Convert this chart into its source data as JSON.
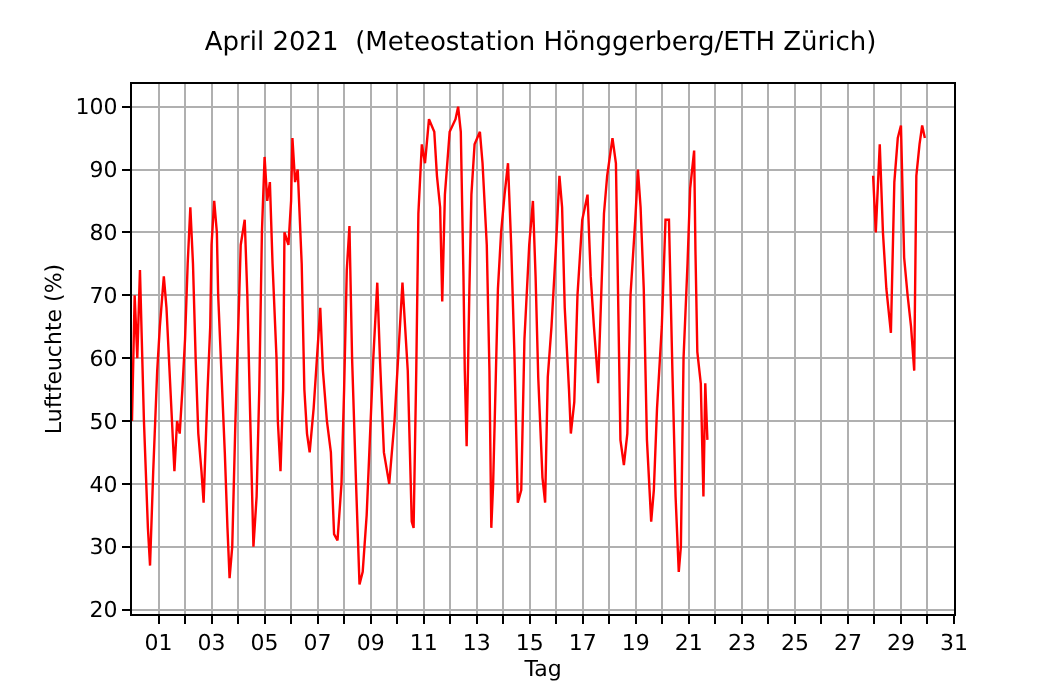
{
  "chart_data": {
    "type": "line",
    "title": "April 2021  (Meteostation Hönggerberg/ETH Zürich)",
    "xlabel": "Tag",
    "ylabel": "Luftfeuchte (%)",
    "x": [
      0.0,
      0.1,
      0.2,
      0.3,
      0.45,
      0.6,
      0.68,
      0.8,
      0.95,
      1.05,
      1.2,
      1.3,
      1.45,
      1.6,
      1.7,
      1.8,
      1.9,
      2.0,
      2.1,
      2.2,
      2.3,
      2.4,
      2.5,
      2.62,
      2.7,
      2.85,
      2.95,
      3.0,
      3.1,
      3.2,
      3.25,
      3.35,
      3.5,
      3.6,
      3.68,
      3.78,
      3.9,
      4.1,
      4.25,
      4.35,
      4.45,
      4.58,
      4.7,
      4.8,
      4.9,
      5.0,
      5.1,
      5.2,
      5.3,
      5.45,
      5.5,
      5.6,
      5.7,
      5.75,
      5.9,
      6.0,
      6.05,
      6.15,
      6.25,
      6.4,
      6.5,
      6.6,
      6.7,
      6.85,
      7.1,
      7.2,
      7.35,
      7.5,
      7.62,
      7.75,
      7.9,
      8.0,
      8.1,
      8.2,
      8.3,
      8.45,
      8.58,
      8.7,
      8.85,
      8.95,
      9.1,
      9.25,
      9.35,
      9.5,
      9.7,
      9.9,
      10.05,
      10.2,
      10.4,
      10.55,
      10.62,
      10.72,
      10.8,
      10.93,
      11.05,
      11.2,
      11.4,
      11.5,
      11.62,
      11.7,
      11.8,
      11.98,
      12.2,
      12.3,
      12.4,
      12.5,
      12.55,
      12.62,
      12.72,
      12.8,
      12.92,
      13.12,
      13.22,
      13.38,
      13.48,
      13.55,
      13.62,
      13.72,
      13.8,
      13.92,
      14.05,
      14.18,
      14.3,
      14.42,
      14.55,
      14.68,
      14.8,
      14.98,
      15.12,
      15.22,
      15.32,
      15.48,
      15.58,
      15.68,
      15.82,
      15.98,
      16.12,
      16.22,
      16.32,
      16.48,
      16.55,
      16.68,
      16.8,
      16.98,
      17.18,
      17.3,
      17.42,
      17.58,
      17.68,
      17.8,
      17.92,
      18.12,
      18.25,
      18.32,
      18.42,
      18.55,
      18.68,
      18.8,
      18.98,
      19.08,
      19.18,
      19.3,
      19.42,
      19.58,
      19.68,
      19.8,
      19.98,
      20.12,
      20.25,
      20.38,
      20.5,
      20.62,
      20.7,
      20.8,
      20.95,
      21.05,
      21.2,
      21.25,
      21.32,
      21.45,
      21.55,
      21.62,
      21.7,
      24.8,
      27.95,
      28.05,
      28.2,
      28.32,
      28.45,
      28.62,
      28.75,
      28.88,
      29.0,
      29.12,
      29.25,
      29.38,
      29.5,
      29.58,
      29.7,
      29.8,
      29.9
    ],
    "series": [
      {
        "color": "#ff0000",
        "values": [
          50,
          70,
          60,
          74,
          50,
          33,
          27,
          42,
          58,
          65,
          73,
          68,
          55,
          42,
          50,
          48,
          55,
          63,
          75,
          84,
          75,
          60,
          48,
          42,
          37,
          55,
          65,
          78,
          85,
          80,
          70,
          60,
          45,
          33,
          25,
          30,
          50,
          78,
          82,
          70,
          52,
          30,
          38,
          55,
          80,
          92,
          85,
          88,
          75,
          60,
          50,
          42,
          55,
          80,
          78,
          85,
          95,
          88,
          90,
          75,
          55,
          48,
          45,
          52,
          68,
          58,
          50,
          45,
          32,
          31,
          40,
          55,
          74,
          81,
          60,
          40,
          24,
          26,
          35,
          45,
          60,
          72,
          60,
          45,
          40,
          50,
          61,
          72,
          58,
          34,
          33,
          58,
          83,
          94,
          91,
          98,
          96,
          89,
          84,
          69,
          86,
          96,
          98,
          100,
          96,
          73,
          58,
          46,
          70,
          86,
          94,
          96,
          91,
          78,
          58,
          33,
          40,
          57,
          71,
          80,
          86,
          91,
          78,
          61,
          37,
          39,
          63,
          78,
          85,
          73,
          57,
          41,
          37,
          57,
          65,
          77,
          89,
          84,
          68,
          55,
          48,
          53,
          70,
          82,
          86,
          73,
          65,
          56,
          68,
          83,
          89,
          95,
          91,
          73,
          47,
          43,
          48,
          70,
          82,
          90,
          84,
          71,
          47,
          34,
          39,
          52,
          65,
          82,
          82,
          58,
          38,
          26,
          30,
          60,
          75,
          87,
          93,
          77,
          61,
          56,
          38,
          56,
          47,
          null,
          89,
          80,
          94,
          80,
          71,
          64,
          88,
          95,
          97,
          76,
          70,
          65,
          58,
          89,
          94,
          97,
          95
        ]
      }
    ],
    "xlim": [
      0,
      31
    ],
    "ylim": [
      19.3,
      103.6
    ],
    "xticks": [
      {
        "value": 1,
        "label": "01"
      },
      {
        "value": 2,
        "label": null
      },
      {
        "value": 3,
        "label": "03"
      },
      {
        "value": 4,
        "label": null
      },
      {
        "value": 5,
        "label": "05"
      },
      {
        "value": 6,
        "label": null
      },
      {
        "value": 7,
        "label": "07"
      },
      {
        "value": 8,
        "label": null
      },
      {
        "value": 9,
        "label": "09"
      },
      {
        "value": 10,
        "label": null
      },
      {
        "value": 11,
        "label": "11"
      },
      {
        "value": 12,
        "label": null
      },
      {
        "value": 13,
        "label": "13"
      },
      {
        "value": 14,
        "label": null
      },
      {
        "value": 15,
        "label": "15"
      },
      {
        "value": 16,
        "label": null
      },
      {
        "value": 17,
        "label": "17"
      },
      {
        "value": 18,
        "label": null
      },
      {
        "value": 19,
        "label": "19"
      },
      {
        "value": 20,
        "label": null
      },
      {
        "value": 21,
        "label": "21"
      },
      {
        "value": 22,
        "label": null
      },
      {
        "value": 23,
        "label": "23"
      },
      {
        "value": 24,
        "label": null
      },
      {
        "value": 25,
        "label": "25"
      },
      {
        "value": 26,
        "label": null
      },
      {
        "value": 27,
        "label": "27"
      },
      {
        "value": 28,
        "label": null
      },
      {
        "value": 29,
        "label": "29"
      },
      {
        "value": 30,
        "label": null
      },
      {
        "value": 31,
        "label": "31"
      }
    ],
    "yticks": [
      20,
      30,
      40,
      50,
      60,
      70,
      80,
      90,
      100
    ],
    "grid": true,
    "marker": "none",
    "line_style": "solid"
  }
}
